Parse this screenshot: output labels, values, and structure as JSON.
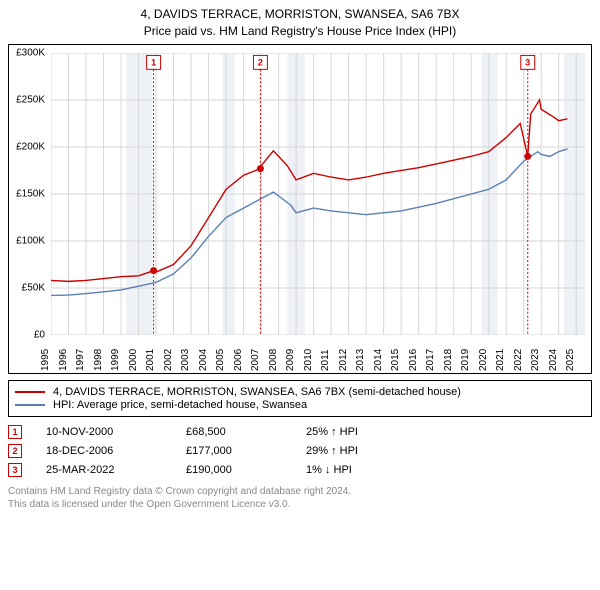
{
  "title_line1": "4, DAVIDS TERRACE, MORRISTON, SWANSEA, SA6 7BX",
  "title_line2": "Price paid vs. HM Land Registry's House Price Index (HPI)",
  "chart": {
    "type": "line",
    "background_color": "#ffffff",
    "grid_color": "#d6d6d6",
    "ylim": [
      0,
      300000
    ],
    "ytick_step": 50000,
    "y_labels": [
      "£0",
      "£50K",
      "£100K",
      "£150K",
      "£200K",
      "£250K",
      "£300K"
    ],
    "x_years": [
      1995,
      1996,
      1997,
      1998,
      1999,
      2000,
      2001,
      2002,
      2003,
      2004,
      2005,
      2006,
      2007,
      2008,
      2009,
      2010,
      2011,
      2012,
      2013,
      2014,
      2015,
      2016,
      2017,
      2018,
      2019,
      2020,
      2021,
      2022,
      2023,
      2024,
      2025
    ],
    "x_min": 1995,
    "x_max": 2025.5,
    "band_color": "#cfd8e6",
    "band_years": [
      [
        1999.3,
        2000.8
      ],
      [
        2004.8,
        2005.5
      ],
      [
        2008.5,
        2009.5
      ],
      [
        2019.6,
        2020.5
      ],
      [
        2024.3,
        2025.5
      ]
    ],
    "series": [
      {
        "name": "property",
        "color": "#cc0000",
        "line_width": 1.4,
        "points": [
          [
            1995,
            58000
          ],
          [
            1996,
            57000
          ],
          [
            1997,
            58000
          ],
          [
            1998,
            60000
          ],
          [
            1999,
            62000
          ],
          [
            2000,
            63000
          ],
          [
            2000.86,
            68500
          ],
          [
            2001,
            67000
          ],
          [
            2002,
            75000
          ],
          [
            2003,
            95000
          ],
          [
            2004,
            125000
          ],
          [
            2005,
            155000
          ],
          [
            2006,
            170000
          ],
          [
            2006.96,
            177000
          ],
          [
            2007,
            180000
          ],
          [
            2007.7,
            196000
          ],
          [
            2008,
            190000
          ],
          [
            2008.5,
            180000
          ],
          [
            2009,
            165000
          ],
          [
            2010,
            172000
          ],
          [
            2011,
            168000
          ],
          [
            2012,
            165000
          ],
          [
            2013,
            168000
          ],
          [
            2014,
            172000
          ],
          [
            2015,
            175000
          ],
          [
            2016,
            178000
          ],
          [
            2017,
            182000
          ],
          [
            2018,
            186000
          ],
          [
            2019,
            190000
          ],
          [
            2020,
            195000
          ],
          [
            2021,
            210000
          ],
          [
            2021.8,
            225000
          ],
          [
            2022.23,
            190000
          ],
          [
            2022.4,
            235000
          ],
          [
            2022.9,
            250000
          ],
          [
            2023,
            240000
          ],
          [
            2023.7,
            232000
          ],
          [
            2024,
            228000
          ],
          [
            2024.5,
            230000
          ]
        ]
      },
      {
        "name": "hpi",
        "color": "#5b7fb5",
        "line_width": 1.4,
        "points": [
          [
            1995,
            42000
          ],
          [
            1996,
            42500
          ],
          [
            1997,
            44000
          ],
          [
            1998,
            46000
          ],
          [
            1999,
            48000
          ],
          [
            2000,
            52000
          ],
          [
            2001,
            56000
          ],
          [
            2002,
            65000
          ],
          [
            2003,
            82000
          ],
          [
            2004,
            105000
          ],
          [
            2005,
            125000
          ],
          [
            2006,
            135000
          ],
          [
            2007,
            145000
          ],
          [
            2007.7,
            152000
          ],
          [
            2008,
            148000
          ],
          [
            2008.7,
            138000
          ],
          [
            2009,
            130000
          ],
          [
            2010,
            135000
          ],
          [
            2011,
            132000
          ],
          [
            2012,
            130000
          ],
          [
            2013,
            128000
          ],
          [
            2014,
            130000
          ],
          [
            2015,
            132000
          ],
          [
            2016,
            136000
          ],
          [
            2017,
            140000
          ],
          [
            2018,
            145000
          ],
          [
            2019,
            150000
          ],
          [
            2020,
            155000
          ],
          [
            2021,
            165000
          ],
          [
            2022,
            185000
          ],
          [
            2022.8,
            195000
          ],
          [
            2023,
            192000
          ],
          [
            2023.5,
            190000
          ],
          [
            2024,
            195000
          ],
          [
            2024.5,
            198000
          ]
        ]
      }
    ],
    "markers": [
      {
        "n": "1",
        "x": 2000.86,
        "y": 68500,
        "y_top": 290000
      },
      {
        "n": "2",
        "x": 2006.96,
        "y": 177000,
        "y_top": 290000
      },
      {
        "n": "3",
        "x": 2022.23,
        "y": 190000,
        "y_top": 290000
      }
    ],
    "marker_box_border": "#cc0000",
    "marker_box_text": "#cc0000",
    "marker_dashed_color": "#cc0000",
    "marker_dot_color": "#cc0000",
    "label_fontsize": 10,
    "title_fontsize": 12
  },
  "legend": [
    {
      "color": "#cc0000",
      "text": "4, DAVIDS TERRACE, MORRISTON, SWANSEA, SA6 7BX (semi-detached house)"
    },
    {
      "color": "#5b7fb5",
      "text": "HPI: Average price, semi-detached house, Swansea"
    }
  ],
  "transactions": [
    {
      "n": "1",
      "date": "10-NOV-2000",
      "price": "£68,500",
      "pct": "25% ↑ HPI"
    },
    {
      "n": "2",
      "date": "18-DEC-2006",
      "price": "£177,000",
      "pct": "29% ↑ HPI"
    },
    {
      "n": "3",
      "date": "25-MAR-2022",
      "price": "£190,000",
      "pct": "1% ↓ HPI"
    }
  ],
  "footer_line1": "Contains HM Land Registry data © Crown copyright and database right 2024.",
  "footer_line2": "This data is licensed under the Open Government Licence v3.0."
}
